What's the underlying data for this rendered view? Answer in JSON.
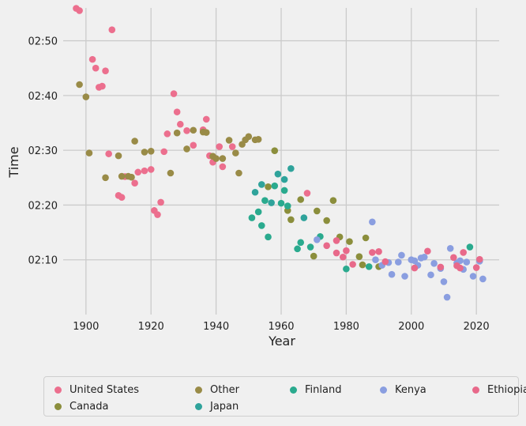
{
  "chart_data": {
    "type": "scatter",
    "title": "",
    "xlabel": "Year",
    "ylabel": "Time",
    "xlim": [
      1893,
      2027
    ],
    "ylim": [
      7200,
      10560
    ],
    "x_ticks": [
      1900,
      1920,
      1940,
      1960,
      1980,
      2000,
      2020
    ],
    "y_ticks": [
      {
        "value": 7800,
        "label": "02:10"
      },
      {
        "value": 8400,
        "label": "02:20"
      },
      {
        "value": 9000,
        "label": "02:30"
      },
      {
        "value": 9600,
        "label": "02:40"
      },
      {
        "value": 10200,
        "label": "02:50"
      }
    ],
    "grid": true,
    "legend_position": "bottom",
    "y_unit": "seconds (displayed as hours:minutes)",
    "series": [
      {
        "name": "United States",
        "color": "#ec6f8e",
        "points": [
          [
            1897,
            10555
          ],
          [
            1898,
            10530
          ],
          [
            1902,
            9996
          ],
          [
            1903,
            9900
          ],
          [
            1904,
            9690
          ],
          [
            1905,
            9702
          ],
          [
            1906,
            9870
          ],
          [
            1907,
            8961
          ],
          [
            1908,
            10320
          ],
          [
            1910,
            8505
          ],
          [
            1911,
            8484
          ],
          [
            1912,
            8712
          ],
          [
            1915,
            8640
          ],
          [
            1916,
            8760
          ],
          [
            1918,
            8775
          ],
          [
            1920,
            8790
          ],
          [
            1921,
            8340
          ],
          [
            1922,
            8295
          ],
          [
            1923,
            8430
          ],
          [
            1924,
            8985
          ],
          [
            1925,
            9180
          ],
          [
            1927,
            9620
          ],
          [
            1928,
            9420
          ],
          [
            1929,
            9285
          ],
          [
            1931,
            9215
          ],
          [
            1933,
            9055
          ],
          [
            1936,
            9225
          ],
          [
            1937,
            9340
          ],
          [
            1938,
            8940
          ],
          [
            1939,
            8870
          ],
          [
            1941,
            9040
          ],
          [
            1942,
            8820
          ],
          [
            1945,
            9040
          ],
          [
            1968,
            8530
          ]
        ]
      },
      {
        "name": "Canada",
        "color": "#998b47",
        "points": [
          [
            1898,
            9720
          ],
          [
            1900,
            9585
          ],
          [
            1901,
            8970
          ],
          [
            1906,
            8700
          ],
          [
            1910,
            8940
          ],
          [
            1911,
            8715
          ],
          [
            1913,
            8715
          ],
          [
            1914,
            8705
          ],
          [
            1915,
            9100
          ],
          [
            1918,
            8980
          ],
          [
            1920,
            8990
          ],
          [
            1926,
            8750
          ],
          [
            1928,
            9190
          ],
          [
            1931,
            9015
          ],
          [
            1933,
            9220
          ],
          [
            1936,
            9200
          ],
          [
            1937,
            9195
          ],
          [
            1939,
            8935
          ],
          [
            1940,
            8910
          ],
          [
            1942,
            8910
          ],
          [
            1944,
            9110
          ],
          [
            1946,
            8970
          ],
          [
            1947,
            8750
          ],
          [
            1948,
            9065
          ],
          [
            1949,
            9115
          ],
          [
            1950,
            9150
          ],
          [
            1952,
            9115
          ],
          [
            1953,
            9120
          ]
        ]
      },
      {
        "name": "Other",
        "color": "#8b8e3c",
        "points": [
          [
            1956,
            8600
          ],
          [
            1958,
            8995
          ],
          [
            1962,
            8340
          ],
          [
            1963,
            8240
          ],
          [
            1966,
            8460
          ],
          [
            1970,
            7840
          ],
          [
            1971,
            8335
          ],
          [
            1974,
            8230
          ],
          [
            1976,
            8450
          ],
          [
            1978,
            8050
          ],
          [
            1981,
            8000
          ],
          [
            1984,
            7835
          ],
          [
            1985,
            7745
          ],
          [
            1986,
            8040
          ],
          [
            1990,
            7725
          ]
        ]
      },
      {
        "name": "Japan",
        "color": "#2aaa8e",
        "points": [
          [
            1951,
            8260
          ],
          [
            1953,
            8325
          ],
          [
            1954,
            8175
          ],
          [
            1955,
            8450
          ],
          [
            1956,
            8050
          ],
          [
            1958,
            8610
          ],
          [
            1960,
            8420
          ],
          [
            1961,
            8560
          ],
          [
            1962,
            8390
          ],
          [
            1965,
            7920
          ],
          [
            1966,
            7990
          ],
          [
            1969,
            7940
          ],
          [
            1972,
            8055
          ],
          [
            1980,
            7700
          ],
          [
            1987,
            7725
          ],
          [
            2018,
            7940
          ]
        ]
      },
      {
        "name": "Finland",
        "color": "#2fa39b",
        "points": [
          [
            1952,
            8540
          ],
          [
            1954,
            8625
          ],
          [
            1957,
            8425
          ],
          [
            1959,
            8740
          ],
          [
            1961,
            8680
          ],
          [
            1963,
            8800
          ],
          [
            1967,
            8260
          ]
        ]
      },
      {
        "name": "Kenya",
        "color": "#8a9ee0",
        "points": [
          [
            1971,
            8020
          ],
          [
            1988,
            8215
          ],
          [
            1989,
            7800
          ],
          [
            1991,
            7740
          ],
          [
            1993,
            7770
          ],
          [
            1994,
            7640
          ],
          [
            1996,
            7775
          ],
          [
            1997,
            7850
          ],
          [
            1998,
            7620
          ],
          [
            2000,
            7800
          ],
          [
            2001,
            7790
          ],
          [
            2002,
            7740
          ],
          [
            2003,
            7820
          ],
          [
            2004,
            7830
          ],
          [
            2006,
            7635
          ],
          [
            2007,
            7760
          ],
          [
            2009,
            7705
          ],
          [
            2010,
            7560
          ],
          [
            2011,
            7390
          ],
          [
            2012,
            7925
          ],
          [
            2014,
            7765
          ],
          [
            2015,
            7790
          ],
          [
            2016,
            7695
          ],
          [
            2017,
            7775
          ],
          [
            2019,
            7620
          ],
          [
            2021,
            7785
          ],
          [
            2022,
            7590
          ]
        ]
      },
      {
        "name": "Ethiopia",
        "color": "#e8698a",
        "points": [
          [
            1974,
            7955
          ],
          [
            1977,
            8010
          ],
          [
            1979,
            7830
          ],
          [
            1980,
            7900
          ],
          [
            1982,
            7750
          ],
          [
            1988,
            7880
          ],
          [
            1990,
            7890
          ],
          [
            1992,
            7780
          ],
          [
            2001,
            7710
          ],
          [
            2005,
            7895
          ],
          [
            2009,
            7720
          ],
          [
            2013,
            7825
          ],
          [
            2014,
            7735
          ],
          [
            2015,
            7710
          ],
          [
            2016,
            7880
          ],
          [
            2020,
            7715
          ],
          [
            2021,
            7805
          ]
        ]
      },
      {
        "name": "",
        "color": "#e8698a",
        "points": [
          [
            1977,
            7875
          ]
        ]
      }
    ],
    "legend": [
      {
        "label": "United States",
        "color": "#ec6f8e"
      },
      {
        "label": "Other",
        "color": "#998b47"
      },
      {
        "label": "Finland",
        "color": "#2aaa8e"
      },
      {
        "label": "Kenya",
        "color": "#8a9ee0"
      },
      {
        "label": "Ethiopia",
        "color": "#e8698a"
      },
      {
        "label": "Canada",
        "color": "#8b8e3c"
      },
      {
        "label": "Japan",
        "color": "#2fa39b"
      }
    ]
  }
}
